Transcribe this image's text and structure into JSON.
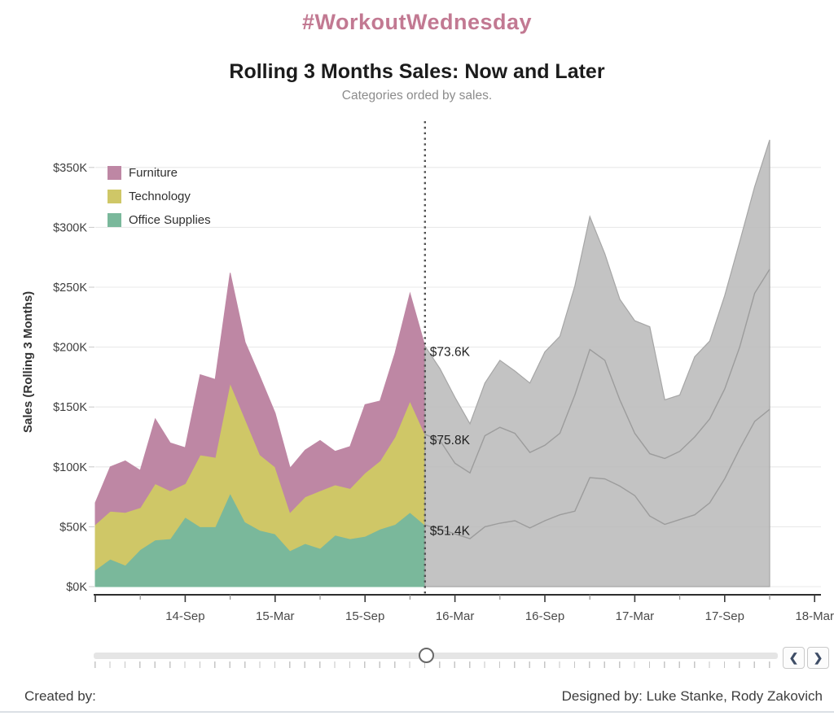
{
  "header": {
    "hashtag_title": "#WorkoutWednesday",
    "title": "Rolling 3 Months Sales: Now and Later",
    "subtitle": "Categories orded by sales."
  },
  "colors": {
    "title_pink": "#c27992",
    "furniture": "#be87a4",
    "technology": "#cfc767",
    "office_supplies": "#7ab89b",
    "future_fill": "#b9b9b9",
    "future_line": "#9c9c9c",
    "dotted_line": "#4f4f4f",
    "gridline": "#e9e9e9",
    "axis_line": "#2e2e2e"
  },
  "legend": {
    "items": [
      {
        "label": "Furniture",
        "color_key": "furniture"
      },
      {
        "label": "Technology",
        "color_key": "technology"
      },
      {
        "label": "Office Supplies",
        "color_key": "office_supplies"
      }
    ]
  },
  "y_axis": {
    "title": "Sales (Rolling 3 Months)",
    "ticks": [
      "$0K",
      "$50K",
      "$100K",
      "$150K",
      "$200K",
      "$250K",
      "$300K",
      "$350K"
    ]
  },
  "x_axis": {
    "ticks": [
      {
        "month_index": 6,
        "label": "14-Sep"
      },
      {
        "month_index": 12,
        "label": "15-Mar"
      },
      {
        "month_index": 18,
        "label": "15-Sep"
      },
      {
        "month_index": 24,
        "label": "16-Mar"
      },
      {
        "month_index": 30,
        "label": "16-Sep"
      },
      {
        "month_index": 36,
        "label": "17-Mar"
      },
      {
        "month_index": 42,
        "label": "17-Sep"
      },
      {
        "month_index": 48,
        "label": "18-Mar"
      }
    ]
  },
  "annotations": {
    "cut_labels": [
      {
        "text": "$73.6K",
        "anchor_k": 200.8
      },
      {
        "text": "$75.8K",
        "anchor_k": 127.2
      },
      {
        "text": "$51.4K",
        "anchor_k": 51.4
      }
    ]
  },
  "footer": {
    "created_by": "Created by:",
    "designed_by": "Designed by: Luke Stanke, Rody Zakovich"
  },
  "chart_data": {
    "type": "area",
    "stacked": true,
    "title": "Rolling 3 Months Sales: Now and Later",
    "ylabel": "Sales (Rolling 3 Months)",
    "ylim": [
      0,
      350
    ],
    "y_tick_step_k": 50,
    "units": "USD thousands",
    "cut_index": 22,
    "cut_month": "2016-01",
    "future_style": "gray silhouette with cumulative boundary lines",
    "months": [
      "2014-03",
      "2014-04",
      "2014-05",
      "2014-06",
      "2014-07",
      "2014-08",
      "2014-09",
      "2014-10",
      "2014-11",
      "2014-12",
      "2015-01",
      "2015-02",
      "2015-03",
      "2015-04",
      "2015-05",
      "2015-06",
      "2015-07",
      "2015-08",
      "2015-09",
      "2015-10",
      "2015-11",
      "2015-12",
      "2016-01",
      "2016-02",
      "2016-03",
      "2016-04",
      "2016-05",
      "2016-06",
      "2016-07",
      "2016-08",
      "2016-09",
      "2016-10",
      "2016-11",
      "2016-12",
      "2017-01",
      "2017-02",
      "2017-03",
      "2017-04",
      "2017-05",
      "2017-06",
      "2017-07",
      "2017-08",
      "2017-09",
      "2017-10",
      "2017-11",
      "2017-12"
    ],
    "series": [
      {
        "name": "Office Supplies",
        "color_key": "office_supplies",
        "stack_order": 0,
        "values": [
          14,
          23,
          18,
          31,
          39,
          40,
          58,
          50,
          50,
          78,
          54,
          47,
          44,
          30,
          36,
          32,
          43,
          40,
          42,
          48,
          52,
          62,
          51.4,
          48,
          44,
          40,
          50,
          53,
          55,
          49,
          55,
          60,
          63,
          91,
          90,
          84,
          76,
          59,
          52,
          56,
          60,
          70,
          90,
          115,
          138,
          148
        ]
      },
      {
        "name": "Technology",
        "color_key": "technology",
        "stack_order": 1,
        "values": [
          38,
          40,
          44,
          35,
          47,
          40,
          28,
          60,
          58,
          92,
          86,
          63,
          56,
          32,
          39,
          48,
          42,
          42,
          53,
          57,
          73,
          93,
          75.8,
          74,
          59,
          55,
          76,
          80,
          73,
          63,
          63,
          68,
          97,
          107,
          99,
          72,
          52,
          52,
          55,
          57,
          65,
          70,
          75,
          85,
          107,
          117
        ]
      },
      {
        "name": "Furniture",
        "color_key": "furniture",
        "stack_order": 2,
        "values": [
          18,
          37,
          43,
          31,
          54,
          40,
          30,
          67,
          65,
          92,
          64,
          65,
          45,
          37,
          39,
          42,
          28,
          35,
          57,
          50,
          70,
          90,
          73.6,
          60,
          55,
          41,
          44,
          56,
          52,
          58,
          78,
          81,
          91,
          111,
          89,
          84,
          94,
          106,
          49,
          47,
          67,
          65,
          78,
          88,
          89,
          108
        ]
      }
    ],
    "values_at_cut_k": {
      "Furniture": 73.6,
      "Technology": 75.8,
      "Office Supplies": 51.4
    }
  }
}
